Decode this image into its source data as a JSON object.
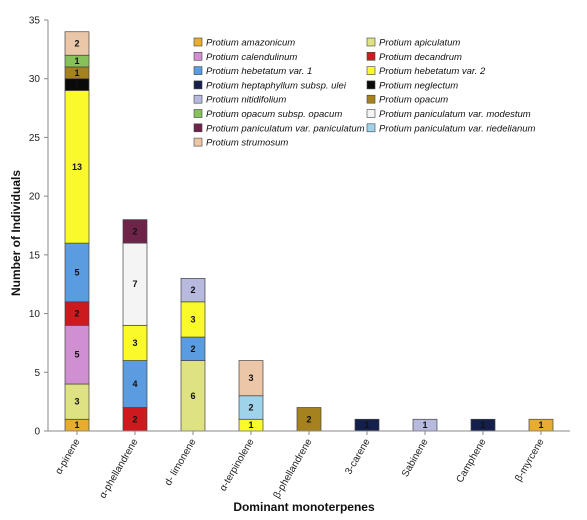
{
  "chart_data": {
    "type": "bar",
    "stacked": true,
    "xlabel": "Dominant monoterpenes",
    "ylabel": "Number of Individuals",
    "ylim": [
      0,
      35
    ],
    "yticks": [
      0,
      5,
      10,
      15,
      20,
      25,
      30,
      35
    ],
    "grid": false,
    "legend_position": "top-right",
    "categories": [
      "α-pinene",
      "α-phellandrene",
      "d- limonene",
      "α-terpinolene",
      "β-phellandrene",
      "3-carene",
      "Sabinene",
      "Camphene",
      "β-myrcene"
    ],
    "series": [
      {
        "name": "Protium amazonicum",
        "color": "#e8ad2c",
        "values": [
          1,
          0,
          0,
          0,
          0,
          0,
          0,
          0,
          1
        ]
      },
      {
        "name": "Protium apiculatum",
        "color": "#dfe283",
        "values": [
          3,
          0,
          6,
          0,
          0,
          0,
          0,
          0,
          0
        ]
      },
      {
        "name": "Protium calendulinum",
        "color": "#cf8fd0",
        "values": [
          5,
          0,
          0,
          0,
          0,
          0,
          0,
          0,
          0
        ]
      },
      {
        "name": "Protium decandrum",
        "color": "#cc1a1e",
        "values": [
          2,
          2,
          0,
          0,
          0,
          0,
          0,
          0,
          0
        ]
      },
      {
        "name": "Protium hebetatum var. 1",
        "color": "#5b9be0",
        "values": [
          5,
          4,
          2,
          0,
          0,
          0,
          0,
          0,
          0
        ]
      },
      {
        "name": "Protium hebetatum var. 2",
        "color": "#fafa2a",
        "values": [
          13,
          3,
          3,
          1,
          0,
          0,
          0,
          0,
          0
        ]
      },
      {
        "name": "Protium heptaphyllum subsp. ulei",
        "color": "#14204a",
        "values": [
          0,
          0,
          0,
          0,
          0,
          1,
          0,
          1,
          0
        ]
      },
      {
        "name": "Protium neglectum",
        "color": "#0a0a0a",
        "values": [
          1,
          0,
          0,
          0,
          0,
          0,
          0,
          0,
          0
        ]
      },
      {
        "name": "Protium nitidifolium",
        "color": "#b7b9de",
        "values": [
          0,
          0,
          2,
          0,
          0,
          0,
          1,
          0,
          0
        ]
      },
      {
        "name": "Protium opacum",
        "color": "#a6821f",
        "values": [
          1,
          0,
          0,
          0,
          2,
          0,
          0,
          0,
          0
        ]
      },
      {
        "name": "Protium opacum subsp. opacum",
        "color": "#86c15a",
        "values": [
          1,
          0,
          0,
          0,
          0,
          0,
          0,
          0,
          0
        ]
      },
      {
        "name": "Protium paniculatum var. modestum",
        "color": "#f4f4f4",
        "values": [
          0,
          7,
          0,
          0,
          0,
          0,
          0,
          0,
          0
        ]
      },
      {
        "name": "Protium paniculatum var. paniculatum",
        "color": "#6e2448",
        "values": [
          0,
          2,
          0,
          0,
          0,
          0,
          0,
          0,
          0
        ]
      },
      {
        "name": "Protium paniculatum var. riedelianum",
        "color": "#9fd3ea",
        "values": [
          0,
          0,
          0,
          2,
          0,
          0,
          0,
          0,
          0
        ]
      },
      {
        "name": "Protium strumosum",
        "color": "#ebc7a8",
        "values": [
          2,
          0,
          0,
          3,
          0,
          0,
          0,
          0,
          0
        ]
      }
    ]
  }
}
